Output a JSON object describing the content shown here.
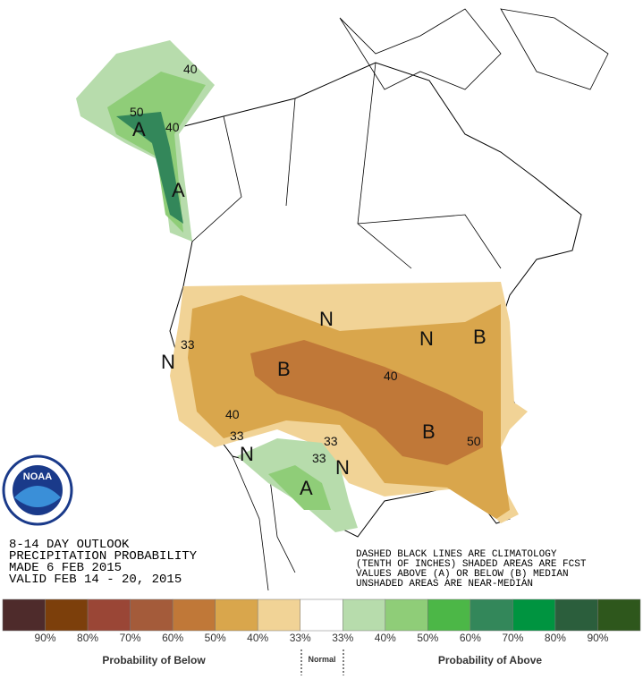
{
  "map": {
    "labels": [
      "40",
      "50",
      "40",
      "A",
      "A",
      "33",
      "N",
      "B",
      "40",
      "33",
      "N",
      "33",
      "33",
      "N",
      "A",
      "B",
      "50",
      "40",
      "N",
      "N",
      "B"
    ],
    "logo": "NOAA",
    "title_lines": [
      "8-14 DAY OUTLOOK",
      "PRECIPITATION PROBABILITY",
      "MADE  6 FEB 2015",
      "VALID  FEB 14 - 20, 2015"
    ],
    "notes": [
      "DASHED BLACK LINES ARE CLIMATOLOGY",
      "(TENTH OF INCHES) SHADED AREAS ARE FCST",
      "VALUES ABOVE (A) OR BELOW (B) MEDIAN",
      "UNSHADED AREAS ARE NEAR-MEDIAN"
    ]
  },
  "legend": {
    "colors": [
      "#4e2b2b",
      "#7c3f0b",
      "#9a4636",
      "#a45b3a",
      "#c07838",
      "#d9a64c",
      "#f1d396",
      "#ffffff",
      "#b7dcac",
      "#8fcd78",
      "#4cb747",
      "#33875a",
      "#009440",
      "#2b5e3c",
      "#2e571c"
    ],
    "below_labels": [
      "90%",
      "80%",
      "70%",
      "60%",
      "50%",
      "40%",
      "33%"
    ],
    "above_labels": [
      "33%",
      "40%",
      "50%",
      "60%",
      "70%",
      "80%",
      "90%"
    ],
    "below_title": "Probability of Below",
    "normal_title": "Normal",
    "above_title": "Probability of Above"
  }
}
